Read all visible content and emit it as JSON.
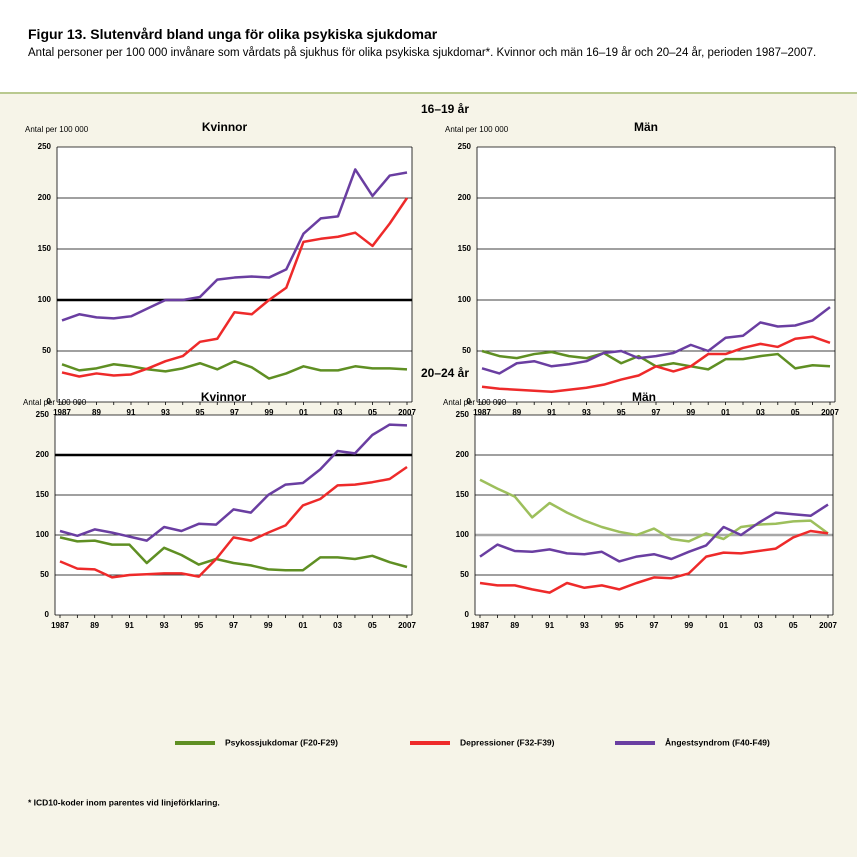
{
  "title": "Figur 13. Slutenvård bland unga för olika psykiska sjukdomar",
  "subtitle": "Antal personer per 100 000 invånare som vårdats på sjukhus för olika psykiska sjukdomar*. Kvinnor och män 16–19 år och 20–24 år, perioden 1987–2007.",
  "footnote": "* ICD10-koder inom parentes vid linjeförklaring.",
  "chart_data": [
    {
      "type": "line",
      "section": "16–19 år",
      "title": "Kvinnor",
      "ylabel": "Antal per 100 000",
      "categories": [
        "1987",
        null,
        "89",
        null,
        "91",
        null,
        "93",
        null,
        "95",
        null,
        "97",
        null,
        "99",
        null,
        "01",
        null,
        "03",
        null,
        "05",
        null,
        "2007"
      ],
      "ylim": [
        0,
        250
      ],
      "yticks": [
        0,
        50,
        100,
        150,
        200,
        250
      ],
      "ref_line": {
        "value": 100,
        "color": "#000000"
      },
      "series": [
        {
          "name": "Psykossjukdomar (F20-F29)",
          "color": "#5f8f23",
          "values": [
            37,
            31,
            33,
            37,
            35,
            32,
            30,
            33,
            38,
            32,
            40,
            34,
            23,
            28,
            35,
            31,
            31,
            35,
            33,
            33,
            32
          ]
        },
        {
          "name": "Depressioner (F32-F39)",
          "color": "#ee2a2a",
          "values": [
            29,
            25,
            28,
            26,
            27,
            33,
            40,
            45,
            59,
            62,
            88,
            86,
            100,
            112,
            157,
            160,
            162,
            166,
            153,
            175,
            200
          ]
        },
        {
          "name": "Ångestsyndrom (F40-F49)",
          "color": "#6a3ea1",
          "values": [
            80,
            86,
            83,
            82,
            84,
            92,
            100,
            100,
            103,
            120,
            122,
            123,
            122,
            130,
            165,
            180,
            182,
            228,
            202,
            222,
            225
          ]
        }
      ]
    },
    {
      "type": "line",
      "title": "Män",
      "ylabel": "Antal per 100 000",
      "categories": [
        "1987",
        null,
        "89",
        null,
        "91",
        null,
        "93",
        null,
        "95",
        null,
        "97",
        null,
        "99",
        null,
        "01",
        null,
        "03",
        null,
        "05",
        null,
        "2007"
      ],
      "ylim": [
        0,
        250
      ],
      "yticks": [
        0,
        50,
        100,
        150,
        200,
        250
      ],
      "series": [
        {
          "name": "Psykossjukdomar (F20-F29)",
          "color": "#5f8f23",
          "values": [
            50,
            45,
            43,
            47,
            49,
            45,
            43,
            48,
            38,
            45,
            35,
            38,
            35,
            32,
            42,
            42,
            45,
            47,
            33,
            36,
            35
          ]
        },
        {
          "name": "Depressioner (F32-F39)",
          "color": "#ee2a2a",
          "values": [
            15,
            13,
            12,
            11,
            10,
            12,
            14,
            17,
            22,
            26,
            35,
            30,
            35,
            47,
            47,
            53,
            57,
            54,
            62,
            64,
            58
          ]
        },
        {
          "name": "Ångestsyndrom (F40-F49)",
          "color": "#6a3ea1",
          "values": [
            33,
            28,
            38,
            40,
            35,
            37,
            40,
            48,
            50,
            43,
            45,
            48,
            56,
            50,
            63,
            65,
            78,
            74,
            75,
            80,
            93
          ]
        }
      ]
    },
    {
      "type": "line",
      "section": "20–24 år",
      "title": "Kvinnor",
      "ylabel": "Antal per 100 000",
      "categories": [
        "1987",
        null,
        "89",
        null,
        "91",
        null,
        "93",
        null,
        "95",
        null,
        "97",
        null,
        "99",
        null,
        "01",
        null,
        "03",
        null,
        "05",
        null,
        "2007"
      ],
      "ylim": [
        0,
        250
      ],
      "yticks": [
        0,
        50,
        100,
        150,
        200,
        250
      ],
      "ref_line": {
        "value": 200,
        "color": "#000000"
      },
      "series": [
        {
          "name": "Psykossjukdomar (F20-F29)",
          "color": "#5f8f23",
          "values": [
            97,
            92,
            93,
            88,
            88,
            65,
            84,
            75,
            63,
            70,
            65,
            62,
            57,
            56,
            56,
            72,
            72,
            70,
            74,
            66,
            60
          ]
        },
        {
          "name": "Depressioner (F32-F39)",
          "color": "#ee2a2a",
          "values": [
            67,
            58,
            57,
            47,
            50,
            51,
            52,
            52,
            48,
            70,
            97,
            93,
            103,
            112,
            137,
            145,
            162,
            163,
            166,
            170,
            185
          ]
        },
        {
          "name": "Ångestsyndrom (F40-F49)",
          "color": "#6a3ea1",
          "values": [
            105,
            99,
            107,
            103,
            98,
            93,
            110,
            105,
            114,
            113,
            132,
            128,
            150,
            163,
            165,
            182,
            205,
            202,
            225,
            238,
            237
          ]
        }
      ]
    },
    {
      "type": "line",
      "title": "Män",
      "ylabel": "Antal per 100 000",
      "categories": [
        "1987",
        null,
        "89",
        null,
        "91",
        null,
        "93",
        null,
        "95",
        null,
        "97",
        null,
        "99",
        null,
        "01",
        null,
        "03",
        null,
        "05",
        null,
        "2007"
      ],
      "ylim": [
        0,
        250
      ],
      "yticks": [
        0,
        50,
        100,
        150,
        200,
        250
      ],
      "ref_line": {
        "value": 100,
        "color": "#a8a8a8"
      },
      "series": [
        {
          "name": "Psykossjukdomar (F20-F29)",
          "color": "#9dbf5c",
          "values": [
            169,
            158,
            148,
            122,
            140,
            128,
            118,
            110,
            104,
            100,
            108,
            95,
            92,
            102,
            95,
            110,
            113,
            114,
            117,
            118,
            102
          ]
        },
        {
          "name": "Depressioner (F32-F39)",
          "color": "#ee2a2a",
          "values": [
            40,
            37,
            37,
            32,
            28,
            40,
            34,
            37,
            32,
            40,
            47,
            46,
            52,
            73,
            78,
            77,
            80,
            83,
            97,
            105,
            102
          ]
        },
        {
          "name": "Ångestsyndrom (F40-F49)",
          "color": "#6a3ea1",
          "values": [
            73,
            88,
            80,
            79,
            82,
            77,
            76,
            79,
            67,
            73,
            76,
            70,
            79,
            87,
            110,
            100,
            115,
            128,
            126,
            124,
            138
          ]
        }
      ]
    }
  ]
}
